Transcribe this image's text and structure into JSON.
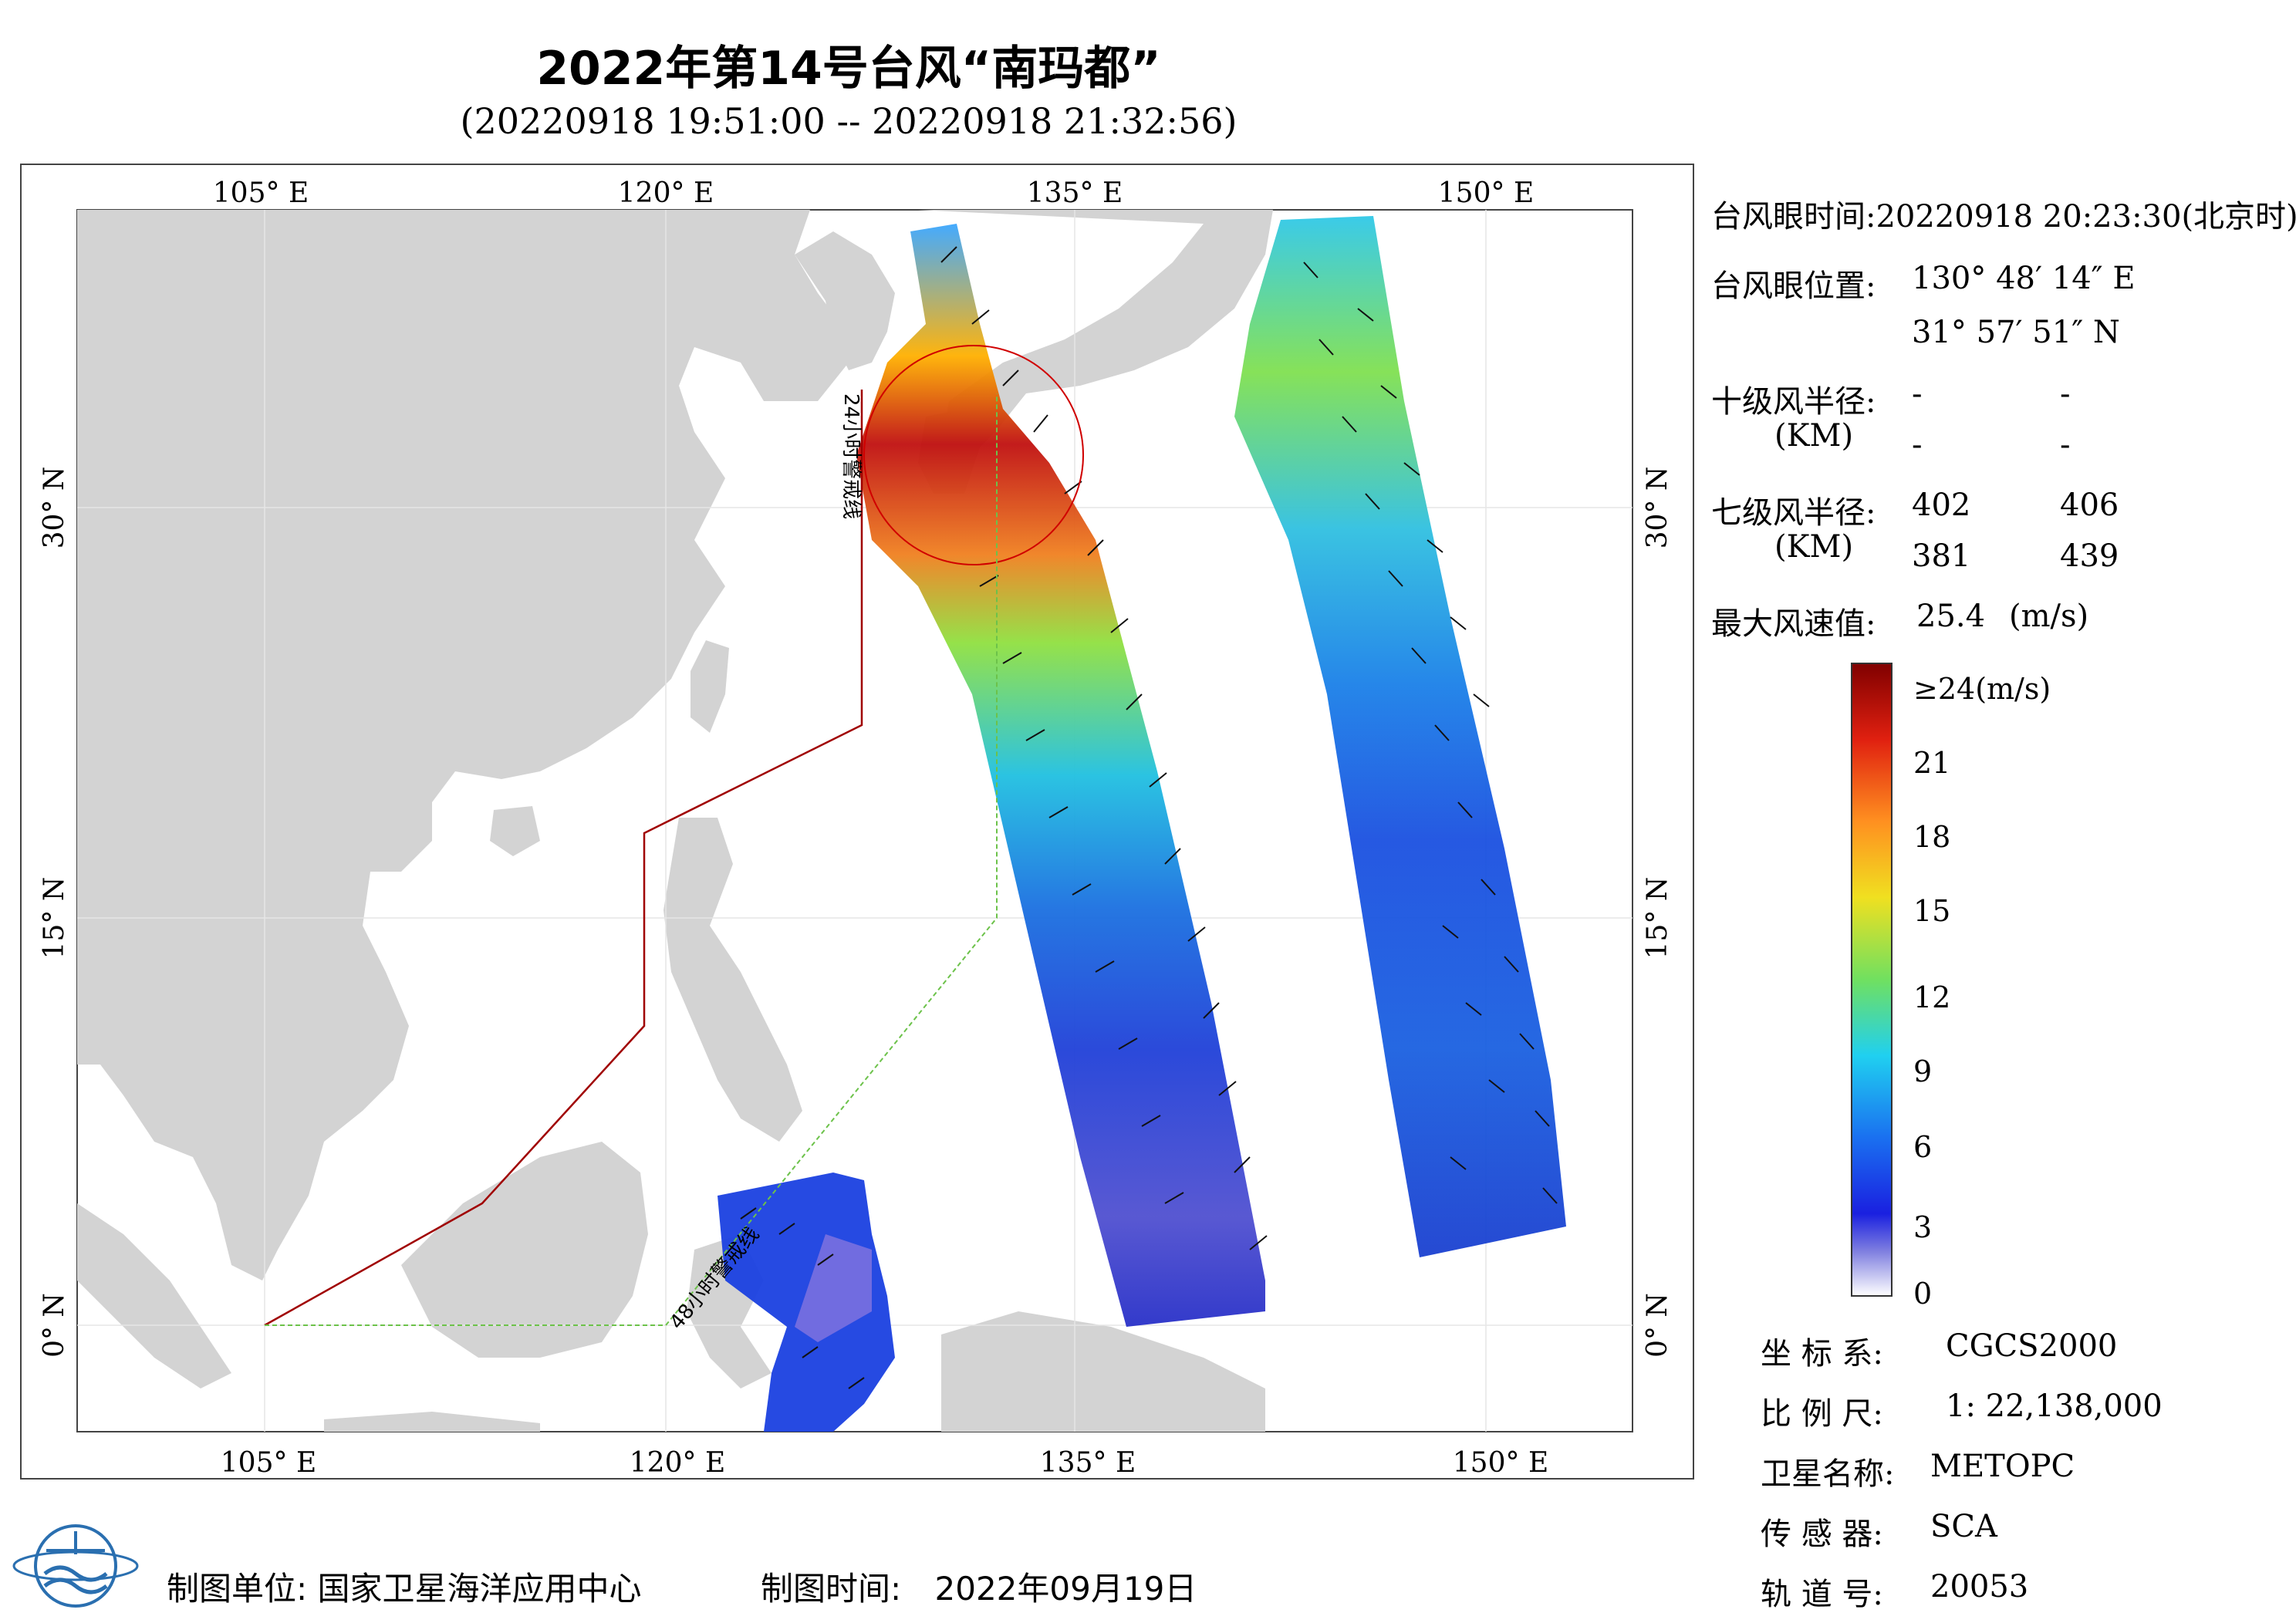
{
  "title": "2022年第14号台风“南玛都”",
  "subtitle": "(20220918 19:51:00 -- 20220918 21:32:56)",
  "map": {
    "lon_ticks": [
      "105° E",
      "120° E",
      "135° E",
      "150° E"
    ],
    "lat_ticks": [
      "30° N",
      "15° N",
      "0° N"
    ],
    "line_24h_label": "24小时警戒线",
    "line_48h_label": "48小时警戒线",
    "colors": {
      "land": "#d3d3d3",
      "sea": "#ffffff",
      "line_24h": "#a00000",
      "line_48h": "#6cc24a",
      "radius_circle": "#d00000"
    }
  },
  "info": {
    "eye_time_label": "台风眼时间:",
    "eye_time_value": "20220918 20:23:30(北京时)",
    "eye_pos_label": "台风眼位置:",
    "eye_lon": "130° 48′ 14″ E",
    "eye_lat": "31° 57′ 51″ N",
    "r10_label": "十级风半径:",
    "r10_unit": "(KM)",
    "r10_values": [
      "-",
      "-",
      "-",
      "-"
    ],
    "r7_label": "七级风半径:",
    "r7_unit": "(KM)",
    "r7_values": [
      "402",
      "406",
      "381",
      "439"
    ],
    "max_wind_label": "最大风速值:",
    "max_wind_value": "25.4",
    "max_wind_unit": "(m/s)"
  },
  "colorbar": {
    "labels": [
      "≥24(m/s)",
      "21",
      "18",
      "15",
      "12",
      "9",
      "6",
      "3",
      "0"
    ]
  },
  "meta": {
    "coord_label": "坐 标 系:",
    "coord_value": "CGCS2000",
    "scale_label": "比 例 尺:",
    "scale_value": "1: 22,138,000",
    "satellite_label": "卫星名称:",
    "satellite_value": "METOPC",
    "sensor_label": "传 感 器:",
    "sensor_value": "SCA",
    "orbit_label": "轨 道 号:",
    "orbit_value": "20053"
  },
  "footer": {
    "unit_label": "制图单位:",
    "unit_value": "国家卫星海洋应用中心",
    "time_label": "制图时间:",
    "time_value": "2022年09月19日"
  }
}
